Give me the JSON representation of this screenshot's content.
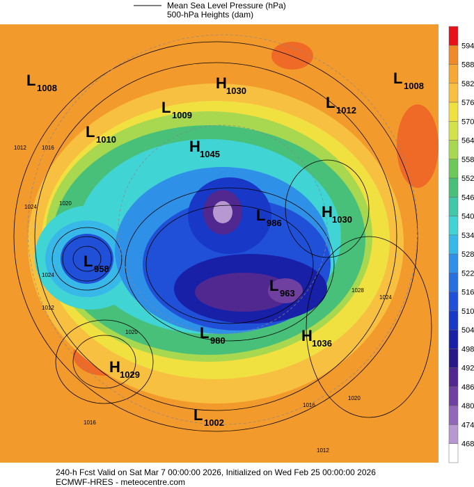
{
  "legend": {
    "mslp": "Mean Sea Level Pressure (hPa)",
    "heights": "500-hPa Heights (dam)"
  },
  "centers": [
    {
      "letter": "L",
      "value": "1008"
    },
    {
      "letter": "H",
      "value": "1030"
    },
    {
      "letter": "L",
      "value": "1009"
    },
    {
      "letter": "L",
      "value": "1012"
    },
    {
      "letter": "L",
      "value": "1010"
    },
    {
      "letter": "H",
      "value": "1045"
    },
    {
      "letter": "L",
      "value": "986"
    },
    {
      "letter": "H",
      "value": "1030"
    },
    {
      "letter": "L",
      "value": "958"
    },
    {
      "letter": "L",
      "value": "963"
    },
    {
      "letter": "L",
      "value": "980"
    },
    {
      "letter": "H",
      "value": "1036"
    },
    {
      "letter": "H",
      "value": "1029"
    },
    {
      "letter": "L",
      "value": "1002"
    },
    {
      "letter": "L",
      "value": "1008"
    }
  ],
  "contour_labels": [
    "1012",
    "1016",
    "1024",
    "1020",
    "1012",
    "1016",
    "1024",
    "1028",
    "1024",
    "1020",
    "1016",
    "1012",
    "1020"
  ],
  "colorbar": {
    "ticks": [
      594,
      588,
      582,
      576,
      570,
      564,
      558,
      552,
      546,
      540,
      534,
      528,
      522,
      516,
      510,
      504,
      498,
      492,
      486,
      480,
      474,
      468
    ],
    "colors": [
      "#e8101a",
      "#f08a28",
      "#f6a834",
      "#f8c040",
      "#f0e040",
      "#d4e24a",
      "#a8d850",
      "#6cc858",
      "#48c07a",
      "#40c8a8",
      "#40d4d4",
      "#38b8e8",
      "#2f90e8",
      "#2870e0",
      "#2050d8",
      "#1838c8",
      "#1820a8",
      "#281888",
      "#502890",
      "#7040a0",
      "#9068b8",
      "#b898d0",
      "#ffffff"
    ]
  },
  "footer": {
    "line1": "240-h Fcst Valid on Sat Mar  7 00:00:00 2026, Initialized on Wed Feb 25 00:00:00 2026",
    "line2": "ECMWF-HRES  - meteocentre.com"
  }
}
